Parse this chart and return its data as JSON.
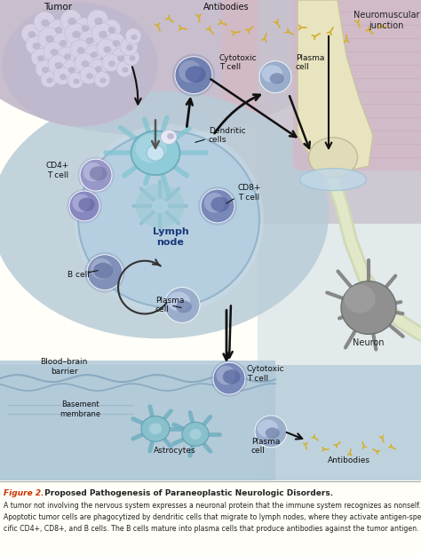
{
  "fig_label": "Figure 2.",
  "fig_title_rest": " Proposed Pathogenesis of Paraneoplastic Neurologic Disorders.",
  "caption_line1": "A tumor not involving the nervous system expresses a neuronal protein that the immune system recognizes as nonself.",
  "caption_line2": "Apoptotic tumor cells are phagocytized by dendritic cells that migrate to lymph nodes, where they activate antigen-spe-",
  "caption_line3": "cific CD4+, CD8+, and B cells. The B cells mature into plasma cells that produce antibodies against the tumor antigen.",
  "labels": {
    "tumor": "Tumor",
    "antibodies_top": "Antibodies",
    "neuromuscular": "Neuromuscular\njunction",
    "cytotoxic_t1": "Cytotoxic\nT cell",
    "plasma_cell_top": "Plasma\ncell",
    "cd4": "CD4+\nT cell",
    "dendritic": "Dendritic\ncells",
    "cd8": "CD8+\nT cell",
    "lymph_node": "Lymph\nnode",
    "b_cell": "B cell",
    "plasma_cell_mid": "Plasma\ncell",
    "blood_brain": "Blood–brain\nbarrier",
    "cytotoxic_t2": "Cytotoxic\nT cell",
    "neuron": "Neuron",
    "basement": "Basement\nmembrane",
    "astrocytes": "Astrocytes",
    "plasma_cell_bot": "Plasma\ncell",
    "antibodies_bot": "Antibodies"
  },
  "bg_main": "#c8c0d0",
  "bg_right": "#d8c8d0",
  "bg_center": "#c0ccd8",
  "lymph_color": "#a8c8e0",
  "lymph_edge": "#8aaac8",
  "tumor_bg": "#c0b4c4",
  "nmj_nerve_color": "#e8e4c8",
  "nmj_muscle_color": "#c8dce8",
  "nerve_axon_color": "#d0dce8",
  "neuron_color": "#909090",
  "cell_blue_dark": "#7888b8",
  "cell_blue_light": "#c0ccec",
  "cell_nucleus_light": "#d8daf0",
  "cell_nucleus_dark": "#9090c0",
  "cell_purple": "#9898c8",
  "cell_light_blue": "#a0b8d8",
  "dendritic_color": "#88ccd8",
  "dendritic_proc": "#70b8c8",
  "antibody_color": "#d4b030",
  "arrow_color": "#111111",
  "bbb_color": "#a0c0d8",
  "caption_bg": "#fffef8",
  "caption_title_color": "#cc3300",
  "caption_text_color": "#222222"
}
